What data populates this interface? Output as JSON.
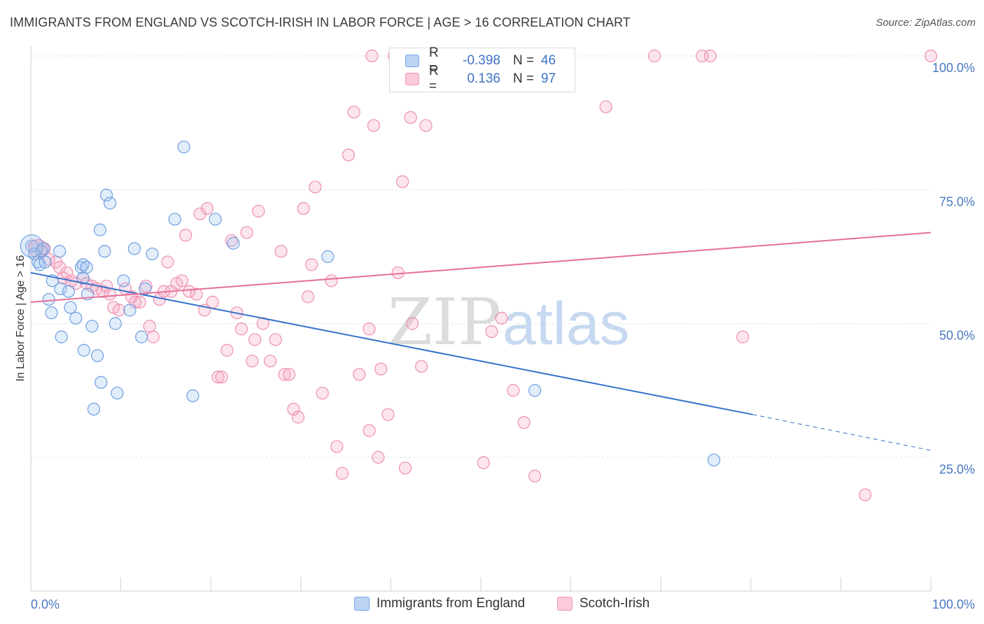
{
  "title": "IMMIGRANTS FROM ENGLAND VS SCOTCH-IRISH IN LABOR FORCE | AGE > 16 CORRELATION CHART",
  "source": "Source: ZipAtlas.com",
  "watermark": {
    "zip": "ZIP",
    "atlas": "atlas"
  },
  "legend": {
    "rows": [
      {
        "r_label": "R =",
        "r_value": "-0.398",
        "n_label": "N =",
        "n_value": "46",
        "color": "#7aa8e6"
      },
      {
        "r_label": "R =",
        "r_value": "0.136",
        "n_label": "N =",
        "n_value": "97",
        "color": "#f09ab8"
      }
    ]
  },
  "bottom_legend": [
    "Immigrants from England",
    "Scotch-Irish"
  ],
  "chart_data": {
    "type": "scatter",
    "ylabel": "In Labor Force | Age > 16",
    "xlabel": "",
    "x_tick_labels": [
      "0.0%",
      "100.0%"
    ],
    "y_tick_labels": [
      "100.0%",
      "75.0%",
      "50.0%",
      "25.0%"
    ],
    "y_ticks": [
      100,
      75,
      50,
      25
    ],
    "xlim": [
      0,
      100
    ],
    "ylim": [
      0,
      100
    ],
    "grid": true,
    "series": [
      {
        "name": "Immigrants from England",
        "color": "#7aa8e6",
        "points": [
          [
            0.1,
            64.5
          ],
          [
            0.4,
            63.0
          ],
          [
            0.8,
            61.5
          ],
          [
            1.0,
            61.0
          ],
          [
            1.2,
            63.5
          ],
          [
            1.6,
            61.5
          ],
          [
            2.0,
            54.5
          ],
          [
            2.3,
            52.0
          ],
          [
            2.4,
            58.0
          ],
          [
            3.2,
            63.5
          ],
          [
            3.3,
            56.5
          ],
          [
            3.4,
            47.5
          ],
          [
            4.2,
            56.0
          ],
          [
            4.4,
            53.0
          ],
          [
            5.0,
            51.0
          ],
          [
            5.6,
            60.5
          ],
          [
            5.8,
            61.0
          ],
          [
            5.8,
            58.5
          ],
          [
            5.9,
            45.0
          ],
          [
            6.2,
            60.5
          ],
          [
            6.3,
            55.5
          ],
          [
            6.8,
            49.5
          ],
          [
            7.4,
            44.0
          ],
          [
            7.7,
            67.5
          ],
          [
            7.8,
            39.0
          ],
          [
            8.2,
            63.5
          ],
          [
            8.4,
            74.0
          ],
          [
            8.8,
            72.5
          ],
          [
            7.0,
            34.0
          ],
          [
            9.4,
            50.0
          ],
          [
            9.6,
            37.0
          ],
          [
            10.3,
            58.0
          ],
          [
            11.0,
            52.5
          ],
          [
            11.5,
            64.0
          ],
          [
            12.3,
            47.5
          ],
          [
            12.7,
            56.5
          ],
          [
            13.5,
            63.0
          ],
          [
            16.0,
            69.5
          ],
          [
            17.0,
            83.0
          ],
          [
            18.0,
            36.5
          ],
          [
            20.5,
            69.5
          ],
          [
            22.5,
            65.0
          ],
          [
            33.0,
            62.5
          ],
          [
            56.0,
            37.5
          ],
          [
            75.9,
            24.5
          ],
          [
            1.4,
            64.0
          ]
        ],
        "trend": {
          "x1": 0,
          "y1": 59.5,
          "x2": 80.2,
          "y2": 33.0,
          "x_dash_end": 100,
          "y_dash_end": 26.3
        }
      },
      {
        "name": "Scotch-Irish",
        "color": "#f09ab8",
        "points": [
          [
            0.4,
            64.5
          ],
          [
            1.2,
            63.5
          ],
          [
            1.5,
            64.0
          ],
          [
            2.0,
            62.0
          ],
          [
            2.8,
            61.5
          ],
          [
            3.2,
            60.5
          ],
          [
            3.6,
            58.5
          ],
          [
            4.0,
            59.5
          ],
          [
            4.5,
            58.0
          ],
          [
            5.0,
            57.5
          ],
          [
            5.8,
            58.5
          ],
          [
            6.2,
            57.5
          ],
          [
            6.8,
            57.0
          ],
          [
            7.3,
            56.5
          ],
          [
            8.0,
            56.0
          ],
          [
            8.4,
            57.0
          ],
          [
            8.8,
            55.5
          ],
          [
            9.2,
            53.0
          ],
          [
            9.8,
            52.5
          ],
          [
            10.5,
            56.5
          ],
          [
            11.2,
            55.0
          ],
          [
            11.6,
            54.0
          ],
          [
            12.1,
            54.0
          ],
          [
            12.8,
            57.0
          ],
          [
            13.2,
            49.5
          ],
          [
            13.6,
            47.5
          ],
          [
            14.3,
            54.5
          ],
          [
            14.8,
            56.0
          ],
          [
            15.2,
            61.5
          ],
          [
            15.6,
            56.0
          ],
          [
            16.2,
            57.5
          ],
          [
            16.8,
            58.0
          ],
          [
            17.2,
            66.5
          ],
          [
            17.6,
            56.0
          ],
          [
            18.4,
            55.5
          ],
          [
            18.8,
            70.5
          ],
          [
            19.3,
            52.5
          ],
          [
            19.6,
            71.5
          ],
          [
            20.2,
            54.0
          ],
          [
            20.8,
            40.0
          ],
          [
            21.2,
            40.0
          ],
          [
            21.8,
            45.0
          ],
          [
            22.3,
            65.5
          ],
          [
            22.9,
            52.0
          ],
          [
            23.4,
            49.0
          ],
          [
            24.0,
            67.0
          ],
          [
            24.6,
            43.0
          ],
          [
            24.9,
            47.0
          ],
          [
            25.3,
            71.0
          ],
          [
            25.8,
            50.0
          ],
          [
            26.6,
            43.0
          ],
          [
            27.2,
            47.0
          ],
          [
            27.8,
            63.5
          ],
          [
            28.2,
            40.5
          ],
          [
            28.7,
            40.5
          ],
          [
            29.2,
            34.0
          ],
          [
            29.7,
            32.5
          ],
          [
            30.3,
            71.5
          ],
          [
            30.8,
            55.0
          ],
          [
            31.2,
            61.0
          ],
          [
            31.6,
            75.5
          ],
          [
            32.4,
            37.0
          ],
          [
            33.4,
            58.0
          ],
          [
            34.0,
            27.0
          ],
          [
            34.6,
            22.0
          ],
          [
            35.3,
            81.5
          ],
          [
            35.9,
            89.5
          ],
          [
            36.5,
            40.5
          ],
          [
            37.6,
            49.0
          ],
          [
            37.6,
            30.0
          ],
          [
            37.9,
            100
          ],
          [
            38.1,
            87.0
          ],
          [
            38.6,
            25.0
          ],
          [
            38.9,
            41.5
          ],
          [
            39.7,
            33.0
          ],
          [
            40.4,
            100
          ],
          [
            40.8,
            59.5
          ],
          [
            41.3,
            76.5
          ],
          [
            41.6,
            23.0
          ],
          [
            42.4,
            50.0
          ],
          [
            42.2,
            88.5
          ],
          [
            43.4,
            42.0
          ],
          [
            43.9,
            87.0
          ],
          [
            49.4,
            100
          ],
          [
            50.3,
            24.0
          ],
          [
            51.2,
            48.5
          ],
          [
            52.3,
            51.0
          ],
          [
            53.6,
            37.5
          ],
          [
            54.8,
            31.5
          ],
          [
            56.0,
            21.5
          ],
          [
            63.9,
            90.5
          ],
          [
            69.3,
            100
          ],
          [
            74.6,
            100
          ],
          [
            75.5,
            100
          ],
          [
            79.1,
            47.5
          ],
          [
            92.7,
            18.0
          ],
          [
            100,
            100
          ]
        ],
        "trend": {
          "x1": 0,
          "y1": 54.0,
          "x2": 100,
          "y2": 67.0
        }
      }
    ]
  }
}
